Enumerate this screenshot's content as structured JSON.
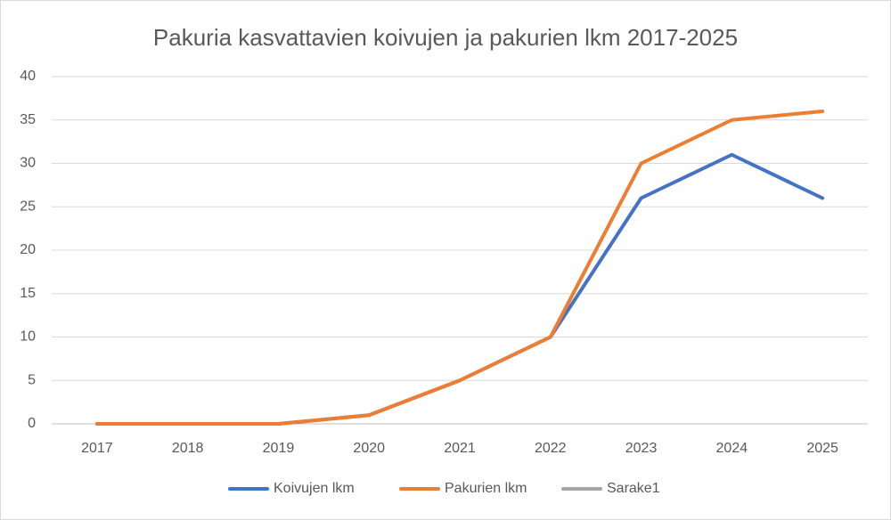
{
  "chart_data": {
    "type": "line",
    "title": "Pakuria kasvattavien koivujen ja pakurien lkm 2017-2025",
    "categories": [
      "2017",
      "2018",
      "2019",
      "2020",
      "2021",
      "2022",
      "2023",
      "2024",
      "2025"
    ],
    "series": [
      {
        "name": "Koivujen lkm",
        "color": "#4472c4",
        "values": [
          0,
          0,
          0,
          1,
          5,
          10,
          26,
          31,
          26
        ]
      },
      {
        "name": "Pakurien lkm",
        "color": "#ed7d31",
        "values": [
          0,
          0,
          0,
          1,
          5,
          10,
          30,
          35,
          36
        ]
      },
      {
        "name": "Sarake1",
        "color": "#a5a5a5",
        "values": [
          null,
          null,
          null,
          null,
          null,
          null,
          null,
          null,
          null
        ]
      }
    ],
    "ylim": [
      0,
      40
    ],
    "yticks": [
      0,
      5,
      10,
      15,
      20,
      25,
      30,
      35,
      40
    ],
    "grid": true,
    "legend": "bottom"
  }
}
